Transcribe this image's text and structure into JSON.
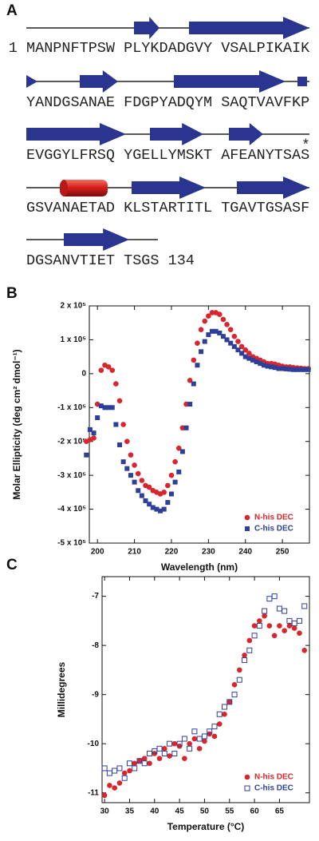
{
  "sequence": {
    "panel_label": "A",
    "rows": [
      "1 MANPNFTPSW PLYKDADGVY VSALPIKAIK",
      "YANDGSANAE FDGPYADQYM SAQTVAVFKP",
      "EVGGYLFRSQ YGELLYMSKT AFEANYTSAS",
      "GSVANAETAD KLSTARTITL TGAVTGSASF",
      "DGSANVTIET TSGS 134"
    ],
    "terminal_mark": "*"
  },
  "chart_data": [
    {
      "panel_label": "B",
      "type": "scatter",
      "x_label": "Wavelength (nm)",
      "y_label": "Molar Ellipticity (deg cm² dmol⁻¹)",
      "x": [
        197,
        198,
        199,
        200,
        201,
        202,
        203,
        204,
        205,
        206,
        207,
        208,
        209,
        210,
        211,
        212,
        213,
        214,
        215,
        216,
        217,
        218,
        219,
        220,
        221,
        222,
        223,
        224,
        225,
        226,
        227,
        228,
        229,
        230,
        231,
        232,
        233,
        234,
        235,
        236,
        237,
        238,
        239,
        240,
        241,
        242,
        243,
        244,
        245,
        246,
        247,
        248,
        249,
        250,
        251,
        252,
        253,
        254,
        255,
        256,
        257
      ],
      "series": [
        {
          "name": "N-his DEC",
          "color": "#d9262e",
          "marker": "circle",
          "filled": true,
          "values": [
            -200000,
            -195000,
            -190000,
            -90000,
            10000,
            25000,
            20000,
            10000,
            -30000,
            -80000,
            -150000,
            -200000,
            -240000,
            -270000,
            -295000,
            -315000,
            -330000,
            -335000,
            -345000,
            -350000,
            -355000,
            -350000,
            -330000,
            -300000,
            -260000,
            -220000,
            -160000,
            -90000,
            -20000,
            40000,
            90000,
            130000,
            155000,
            170000,
            180000,
            180000,
            175000,
            160000,
            145000,
            130000,
            110000,
            95000,
            80000,
            70000,
            60000,
            50000,
            45000,
            40000,
            35000,
            30000,
            30000,
            28000,
            25000,
            22000,
            20000,
            20000,
            18000,
            17000,
            16000,
            15000,
            15000
          ]
        },
        {
          "name": "C-his DEC",
          "color": "#2e3f9a",
          "marker": "square",
          "filled": true,
          "values": [
            -240000,
            -165000,
            -175000,
            -130000,
            -95000,
            -100000,
            -100000,
            -100000,
            -150000,
            -210000,
            -260000,
            -280000,
            -300000,
            -320000,
            -345000,
            -360000,
            -375000,
            -385000,
            -395000,
            -400000,
            -405000,
            -400000,
            -380000,
            -355000,
            -320000,
            -290000,
            -230000,
            -160000,
            -90000,
            -30000,
            25000,
            65000,
            95000,
            115000,
            125000,
            125000,
            120000,
            110000,
            100000,
            90000,
            80000,
            70000,
            60000,
            50000,
            45000,
            40000,
            35000,
            30000,
            25000,
            22000,
            20000,
            18000,
            15000,
            15000,
            14000,
            13000,
            12000,
            12000,
            12000,
            12000,
            12000
          ]
        }
      ],
      "xlim": [
        197.8,
        257.3
      ],
      "ylim": [
        -500000,
        200000
      ],
      "xticks": [
        200,
        210,
        220,
        230,
        240,
        250
      ],
      "yticks": [
        {
          "value": 200000,
          "label": "2 x 10⁵"
        },
        {
          "value": 100000,
          "label": "1 x 10⁵"
        },
        0,
        {
          "value": -100000,
          "label": "-1 x 10⁵"
        },
        {
          "value": -200000,
          "label": "-2 x 10⁵"
        },
        {
          "value": -300000,
          "label": "-3 x 10⁵"
        },
        {
          "value": -400000,
          "label": "-4 x 10⁵"
        },
        {
          "value": -500000,
          "label": "-5 x 10⁵"
        }
      ],
      "legend": "lower right"
    },
    {
      "panel_label": "C",
      "type": "scatter",
      "x_label": "Temperature (°C)",
      "y_label": "Millidegrees",
      "x": [
        30,
        31,
        32,
        33,
        34,
        35,
        36,
        37,
        38,
        39,
        40,
        41,
        42,
        43,
        44,
        45,
        46,
        47,
        48,
        49,
        50,
        51,
        52,
        53,
        54,
        55,
        56,
        57,
        58,
        59,
        60,
        61,
        62,
        63,
        64,
        65,
        66,
        67,
        68,
        69,
        70
      ],
      "series": [
        {
          "name": "N-his DEC",
          "color": "#d9262e",
          "marker": "circle",
          "filled": true,
          "values": [
            -11.05,
            -10.85,
            -10.9,
            -10.8,
            -10.6,
            -10.55,
            -10.4,
            -10.35,
            -10.3,
            -10.4,
            -10.2,
            -10.3,
            -10.1,
            -10.25,
            -10.0,
            -10.05,
            -10.3,
            -10.0,
            -9.9,
            -10.1,
            -9.95,
            -9.8,
            -9.85,
            -9.6,
            -9.4,
            -9.15,
            -8.8,
            -8.5,
            -8.2,
            -7.9,
            -7.6,
            -7.5,
            -7.4,
            -7.6,
            -7.8,
            -7.6,
            -7.7,
            -7.6,
            -7.65,
            -7.75,
            -8.1
          ]
        },
        {
          "name": "C-his DEC",
          "color": "#2e3f9a",
          "marker": "square",
          "filled": false,
          "values": [
            -10.5,
            -10.6,
            -10.55,
            -10.5,
            -10.7,
            -10.4,
            -10.5,
            -10.35,
            -10.4,
            -10.2,
            -10.15,
            -10.1,
            -10.2,
            -10.0,
            -10.2,
            -10.0,
            -9.9,
            -10.1,
            -9.75,
            -9.9,
            -9.85,
            -9.75,
            -9.65,
            -9.4,
            -9.25,
            -9.15,
            -9.0,
            -8.7,
            -8.3,
            -8.1,
            -7.8,
            -7.6,
            -7.3,
            -7.05,
            -7.0,
            -7.25,
            -7.3,
            -7.5,
            -7.55,
            -7.5,
            -7.2
          ]
        }
      ],
      "xlim": [
        29.5,
        71
      ],
      "ylim": [
        -11.2,
        -6.6
      ],
      "xticks": [
        30,
        35,
        40,
        45,
        50,
        55,
        60,
        65
      ],
      "yticks": [
        -11,
        -10,
        -9,
        -8,
        -7
      ],
      "legend": "lower right"
    }
  ]
}
